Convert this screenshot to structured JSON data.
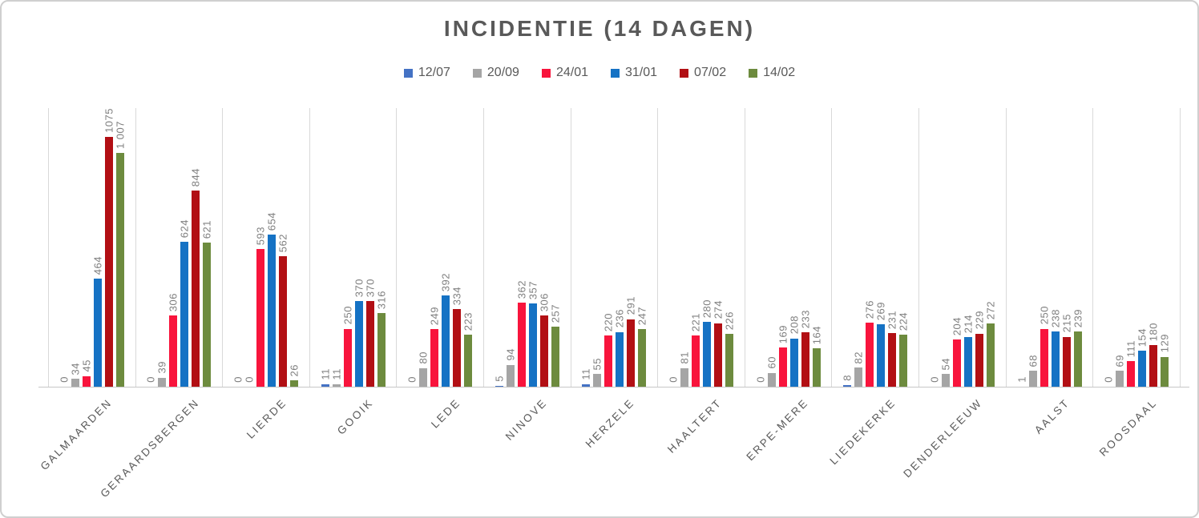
{
  "title": "INCIDENTIE (14 DAGEN)",
  "chart_data": {
    "type": "bar",
    "title": "INCIDENTIE (14 DAGEN)",
    "categories": [
      "GALMAARDEN",
      "GERAARDSBERGEN",
      "LIERDE",
      "GOOIK",
      "LEDE",
      "NINOVE",
      "HERZELE",
      "HAALTERT",
      "ERPE-MERE",
      "LIEDEKERKE",
      "DENDERLEEUW",
      "AALST",
      "ROOSDAAL"
    ],
    "series": [
      {
        "name": "12/07",
        "color": "#4472c4",
        "values": [
          0,
          0,
          0,
          11,
          0,
          5,
          11,
          0,
          0,
          8,
          0,
          1,
          0
        ],
        "labels": [
          "0",
          "0",
          "0",
          "11",
          "0",
          "5",
          "11",
          "0",
          "0",
          "8",
          "0",
          "1",
          "0"
        ]
      },
      {
        "name": "20/09",
        "color": "#a5a5a5",
        "values": [
          34,
          39,
          0,
          11,
          80,
          94,
          55,
          81,
          60,
          82,
          54,
          68,
          69
        ],
        "labels": [
          "34",
          "39",
          "0",
          "11",
          "80",
          "94",
          "55",
          "81",
          "60",
          "82",
          "54",
          "68",
          "69"
        ]
      },
      {
        "name": "24/01",
        "color": "#f8143c",
        "values": [
          45,
          306,
          593,
          250,
          249,
          362,
          220,
          221,
          169,
          276,
          204,
          250,
          111
        ],
        "labels": [
          "45",
          "306",
          "593",
          "250",
          "249",
          "362",
          "220",
          "221",
          "169",
          "276",
          "204",
          "250",
          "111"
        ]
      },
      {
        "name": "31/01",
        "color": "#1572c4",
        "values": [
          464,
          624,
          654,
          370,
          392,
          357,
          236,
          280,
          208,
          269,
          214,
          238,
          154
        ],
        "labels": [
          "464",
          "624",
          "654",
          "370",
          "392",
          "357",
          "236",
          "280",
          "208",
          "269",
          "214",
          "238",
          "154"
        ]
      },
      {
        "name": "07/02",
        "color": "#b20f14",
        "values": [
          1075,
          844,
          562,
          370,
          334,
          306,
          291,
          274,
          233,
          231,
          229,
          215,
          180
        ],
        "labels": [
          "1075",
          "844",
          "562",
          "370",
          "334",
          "306",
          "291",
          "274",
          "233",
          "231",
          "229",
          "215",
          "180"
        ]
      },
      {
        "name": "14/02",
        "color": "#6d8b3e",
        "values": [
          1007,
          621,
          26,
          316,
          223,
          257,
          247,
          226,
          164,
          224,
          272,
          239,
          129
        ],
        "labels": [
          "1 007",
          "621",
          "26",
          "316",
          "223",
          "257",
          "247",
          "226",
          "164",
          "224",
          "272",
          "239",
          "129"
        ]
      }
    ],
    "ylim": [
      0,
      1200
    ],
    "grid": "vertical-category-separators",
    "legend_position": "top-center",
    "bar_label_rotation": "vertical-bottom-to-top",
    "category_label_rotation": 45
  }
}
